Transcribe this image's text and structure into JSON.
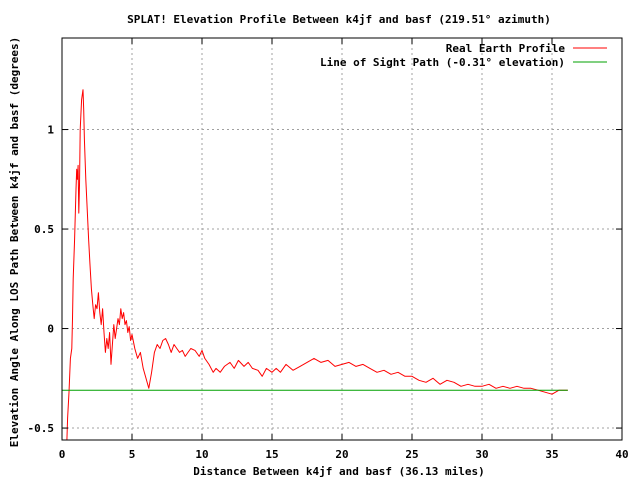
{
  "chart_data": {
    "type": "line",
    "title": "SPLAT! Elevation Profile Between k4jf and basf (219.51° azimuth)",
    "xlabel": "Distance Between k4jf and basf (36.13 miles)",
    "ylabel": "Elevation Angle Along LOS Path Between k4jf and basf (degrees)",
    "xlim": [
      0,
      40
    ],
    "ylim": [
      -0.56,
      1.46
    ],
    "x_ticks": [
      "0",
      "5",
      "10",
      "15",
      "20",
      "25",
      "30",
      "35",
      "40"
    ],
    "y_ticks": [
      "-0.5",
      "0",
      "0.5",
      "1"
    ],
    "grid": true,
    "legend_position": "top-right",
    "series": [
      {
        "name": "Real Earth Profile",
        "color": "#ff0000",
        "points": [
          [
            0.35,
            -0.56
          ],
          [
            0.4,
            -0.45
          ],
          [
            0.5,
            -0.32
          ],
          [
            0.6,
            -0.15
          ],
          [
            0.7,
            -0.1
          ],
          [
            0.75,
            0.05
          ],
          [
            0.8,
            0.25
          ],
          [
            0.9,
            0.45
          ],
          [
            1.0,
            0.7
          ],
          [
            1.05,
            0.8
          ],
          [
            1.1,
            0.75
          ],
          [
            1.15,
            0.82
          ],
          [
            1.2,
            0.58
          ],
          [
            1.25,
            0.72
          ],
          [
            1.3,
            1.0
          ],
          [
            1.4,
            1.15
          ],
          [
            1.5,
            1.2
          ],
          [
            1.55,
            1.1
          ],
          [
            1.6,
            0.95
          ],
          [
            1.7,
            0.75
          ],
          [
            1.8,
            0.6
          ],
          [
            1.9,
            0.45
          ],
          [
            2.0,
            0.32
          ],
          [
            2.1,
            0.2
          ],
          [
            2.2,
            0.12
          ],
          [
            2.3,
            0.05
          ],
          [
            2.4,
            0.12
          ],
          [
            2.5,
            0.1
          ],
          [
            2.6,
            0.18
          ],
          [
            2.7,
            0.08
          ],
          [
            2.8,
            0.02
          ],
          [
            2.9,
            0.1
          ],
          [
            3.0,
            -0.02
          ],
          [
            3.1,
            -0.12
          ],
          [
            3.2,
            -0.05
          ],
          [
            3.3,
            -0.1
          ],
          [
            3.4,
            -0.02
          ],
          [
            3.5,
            -0.18
          ],
          [
            3.6,
            -0.08
          ],
          [
            3.7,
            0.02
          ],
          [
            3.8,
            -0.05
          ],
          [
            3.9,
            0.0
          ],
          [
            4.0,
            0.05
          ],
          [
            4.1,
            0.02
          ],
          [
            4.2,
            0.1
          ],
          [
            4.3,
            0.05
          ],
          [
            4.4,
            0.08
          ],
          [
            4.5,
            0.02
          ],
          [
            4.6,
            0.04
          ],
          [
            4.7,
            -0.02
          ],
          [
            4.8,
            0.01
          ],
          [
            4.9,
            -0.06
          ],
          [
            5.0,
            -0.03
          ],
          [
            5.2,
            -0.1
          ],
          [
            5.4,
            -0.15
          ],
          [
            5.6,
            -0.12
          ],
          [
            5.8,
            -0.2
          ],
          [
            6.0,
            -0.25
          ],
          [
            6.2,
            -0.3
          ],
          [
            6.4,
            -0.22
          ],
          [
            6.6,
            -0.12
          ],
          [
            6.8,
            -0.08
          ],
          [
            7.0,
            -0.1
          ],
          [
            7.2,
            -0.06
          ],
          [
            7.4,
            -0.05
          ],
          [
            7.6,
            -0.08
          ],
          [
            7.8,
            -0.12
          ],
          [
            8.0,
            -0.08
          ],
          [
            8.2,
            -0.1
          ],
          [
            8.4,
            -0.12
          ],
          [
            8.6,
            -0.11
          ],
          [
            8.8,
            -0.14
          ],
          [
            9.0,
            -0.12
          ],
          [
            9.2,
            -0.1
          ],
          [
            9.5,
            -0.11
          ],
          [
            9.8,
            -0.14
          ],
          [
            10.0,
            -0.11
          ],
          [
            10.2,
            -0.15
          ],
          [
            10.5,
            -0.18
          ],
          [
            10.8,
            -0.22
          ],
          [
            11.0,
            -0.2
          ],
          [
            11.3,
            -0.22
          ],
          [
            11.6,
            -0.19
          ],
          [
            12.0,
            -0.17
          ],
          [
            12.3,
            -0.2
          ],
          [
            12.6,
            -0.16
          ],
          [
            13.0,
            -0.19
          ],
          [
            13.3,
            -0.17
          ],
          [
            13.6,
            -0.2
          ],
          [
            14.0,
            -0.21
          ],
          [
            14.3,
            -0.24
          ],
          [
            14.6,
            -0.2
          ],
          [
            15.0,
            -0.22
          ],
          [
            15.3,
            -0.2
          ],
          [
            15.6,
            -0.22
          ],
          [
            16.0,
            -0.18
          ],
          [
            16.5,
            -0.21
          ],
          [
            17.0,
            -0.19
          ],
          [
            17.5,
            -0.17
          ],
          [
            18.0,
            -0.15
          ],
          [
            18.5,
            -0.17
          ],
          [
            19.0,
            -0.16
          ],
          [
            19.5,
            -0.19
          ],
          [
            20.0,
            -0.18
          ],
          [
            20.5,
            -0.17
          ],
          [
            21.0,
            -0.19
          ],
          [
            21.5,
            -0.18
          ],
          [
            22.0,
            -0.2
          ],
          [
            22.5,
            -0.22
          ],
          [
            23.0,
            -0.21
          ],
          [
            23.5,
            -0.23
          ],
          [
            24.0,
            -0.22
          ],
          [
            24.5,
            -0.24
          ],
          [
            25.0,
            -0.24
          ],
          [
            25.5,
            -0.26
          ],
          [
            26.0,
            -0.27
          ],
          [
            26.5,
            -0.25
          ],
          [
            27.0,
            -0.28
          ],
          [
            27.5,
            -0.26
          ],
          [
            28.0,
            -0.27
          ],
          [
            28.5,
            -0.29
          ],
          [
            29.0,
            -0.28
          ],
          [
            29.5,
            -0.29
          ],
          [
            30.0,
            -0.29
          ],
          [
            30.5,
            -0.28
          ],
          [
            31.0,
            -0.3
          ],
          [
            31.5,
            -0.29
          ],
          [
            32.0,
            -0.3
          ],
          [
            32.5,
            -0.29
          ],
          [
            33.0,
            -0.3
          ],
          [
            33.5,
            -0.3
          ],
          [
            34.0,
            -0.31
          ],
          [
            34.5,
            -0.32
          ],
          [
            35.0,
            -0.33
          ],
          [
            35.5,
            -0.31
          ],
          [
            36.13,
            -0.31
          ]
        ]
      },
      {
        "name": "Line of Sight Path (-0.31° elevation)",
        "color": "#00a000",
        "points": [
          [
            0.0,
            -0.31
          ],
          [
            36.13,
            -0.31
          ]
        ]
      }
    ]
  }
}
